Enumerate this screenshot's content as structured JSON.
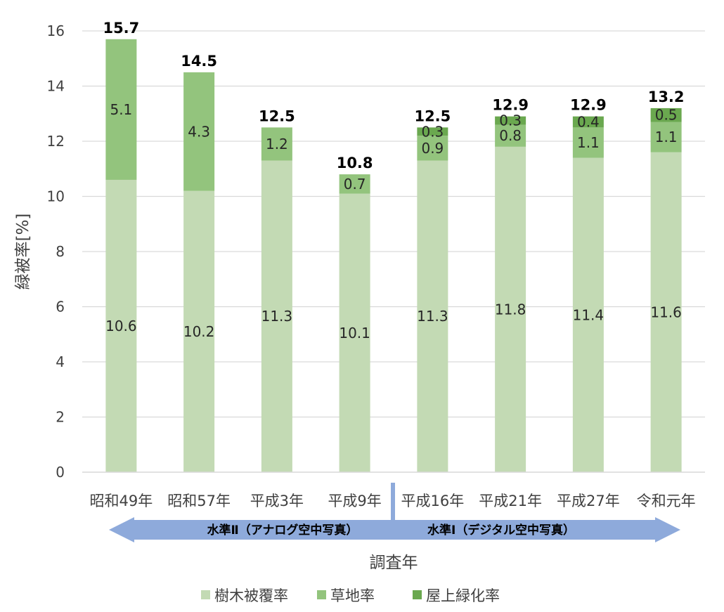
{
  "chart_data": {
    "type": "bar",
    "stacked": true,
    "categories": [
      "昭和49年",
      "昭和57年",
      "平成3年",
      "平成9年",
      "平成16年",
      "平成21年",
      "平成27年",
      "令和元年"
    ],
    "series": [
      {
        "name": "樹木被覆率",
        "values": [
          10.6,
          10.2,
          11.3,
          10.1,
          11.3,
          11.8,
          11.4,
          11.6
        ],
        "color": "#c3dab4"
      },
      {
        "name": "草地率",
        "values": [
          5.1,
          4.3,
          1.2,
          0.7,
          0.9,
          0.8,
          1.1,
          1.1
        ],
        "color": "#93c47d"
      },
      {
        "name": "屋上緑化率",
        "values": [
          null,
          null,
          null,
          null,
          0.3,
          0.3,
          0.4,
          0.5
        ],
        "color": "#6aa84f"
      }
    ],
    "totals": [
      15.7,
      14.5,
      12.5,
      10.8,
      12.5,
      12.9,
      12.9,
      13.2
    ],
    "xlabel": "調査年",
    "ylabel": "緑被率[%]",
    "ylim": [
      0,
      16
    ],
    "yticks": [
      "0",
      "2",
      "4",
      "6",
      "8",
      "10",
      "12",
      "14",
      "16"
    ],
    "grid": true,
    "legend_position": "bottom",
    "annotations": {
      "left_arrow": "水準Ⅱ（アナログ空中写真）",
      "right_arrow": "水準Ⅰ（デジタル空中写真）",
      "arrow_color": "#8eaadb",
      "divider_color": "#8eaadb"
    }
  }
}
